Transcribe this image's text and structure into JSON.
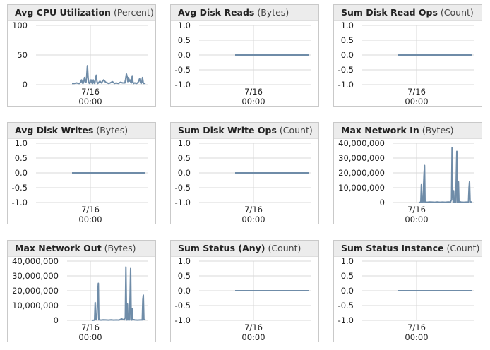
{
  "series_color": "#6f8ca8",
  "grid_color": "#d9d9d9",
  "xtick": {
    "date": "7/16",
    "time": "00:00"
  },
  "panels": [
    {
      "title": "Avg CPU Utilization",
      "unit": "(Percent)"
    },
    {
      "title": "Avg Disk Reads",
      "unit": "(Bytes)"
    },
    {
      "title": "Sum Disk Read Ops",
      "unit": "(Count)"
    },
    {
      "title": "Avg Disk Writes",
      "unit": "(Bytes)"
    },
    {
      "title": "Sum Disk Write Ops",
      "unit": "(Count)"
    },
    {
      "title": "Max Network In",
      "unit": "(Bytes)"
    },
    {
      "title": "Max Network Out",
      "unit": "(Bytes)"
    },
    {
      "title": "Sum Status (Any)",
      "unit": "(Count)"
    },
    {
      "title": "Sum Status Instance",
      "unit": "(Count)"
    }
  ],
  "chart_data": [
    {
      "type": "line",
      "title": "Avg CPU Utilization",
      "ylabel": "Percent",
      "yticks": [
        "100",
        "50",
        "0"
      ],
      "ytick_values": [
        100,
        50,
        0
      ],
      "ylim": [
        0,
        100
      ],
      "xlim": [
        0,
        1
      ],
      "x": [
        0,
        0.03,
        0.06,
        0.09,
        0.1,
        0.11,
        0.12,
        0.13,
        0.14,
        0.15,
        0.16,
        0.17,
        0.18,
        0.19,
        0.2,
        0.21,
        0.22,
        0.23,
        0.24,
        0.25,
        0.26,
        0.27,
        0.28,
        0.29,
        0.3,
        0.31,
        0.32,
        0.33,
        0.34,
        0.35,
        0.36,
        0.38,
        0.4,
        0.43,
        0.46,
        0.5,
        0.52,
        0.55,
        0.58,
        0.6,
        0.63,
        0.66,
        0.69,
        0.72,
        0.73,
        0.74,
        0.75,
        0.76,
        0.77,
        0.78,
        0.79,
        0.8,
        0.81,
        0.82,
        0.83,
        0.84,
        0.85,
        0.86,
        0.87,
        0.88,
        0.9,
        0.92,
        0.93,
        0.94,
        0.95,
        0.96,
        0.97,
        0.98,
        1
      ],
      "series": [
        {
          "values": [
            2,
            2,
            3,
            2,
            2,
            3,
            5,
            8,
            3,
            2,
            5,
            12,
            6,
            4,
            14,
            32,
            10,
            3,
            2,
            5,
            8,
            3,
            2,
            8,
            3,
            2,
            10,
            16,
            5,
            2,
            3,
            6,
            3,
            8,
            4,
            2,
            3,
            5,
            2,
            3,
            2,
            4,
            3,
            3,
            9,
            18,
            14,
            5,
            12,
            6,
            8,
            4,
            3,
            15,
            4,
            2,
            3,
            3,
            2,
            2,
            4,
            10,
            5,
            2,
            4,
            12,
            3,
            2,
            3
          ]
        }
      ]
    },
    {
      "type": "line",
      "title": "Avg Disk Reads",
      "ylabel": "Bytes",
      "yticks": [
        "1.0",
        "0.5",
        "0.0",
        "-0.5",
        "-1.0"
      ],
      "ytick_values": [
        1,
        0.5,
        0,
        -0.5,
        -1
      ],
      "ylim": [
        -1,
        1
      ],
      "xlim": [
        0,
        1
      ],
      "x": [
        0,
        1
      ],
      "series": [
        {
          "values": [
            0,
            0
          ]
        }
      ]
    },
    {
      "type": "line",
      "title": "Sum Disk Read Ops",
      "ylabel": "Count",
      "yticks": [
        "1.0",
        "0.5",
        "0.0",
        "-0.5",
        "-1.0"
      ],
      "ytick_values": [
        1,
        0.5,
        0,
        -0.5,
        -1
      ],
      "ylim": [
        -1,
        1
      ],
      "xlim": [
        0,
        1
      ],
      "x": [
        0,
        1
      ],
      "series": [
        {
          "values": [
            0,
            0
          ]
        }
      ]
    },
    {
      "type": "line",
      "title": "Avg Disk Writes",
      "ylabel": "Bytes",
      "yticks": [
        "1.0",
        "0.5",
        "0.0",
        "-0.5",
        "-1.0"
      ],
      "ytick_values": [
        1,
        0.5,
        0,
        -0.5,
        -1
      ],
      "ylim": [
        -1,
        1
      ],
      "xlim": [
        0,
        1
      ],
      "x": [
        0,
        1
      ],
      "series": [
        {
          "values": [
            0,
            0
          ]
        }
      ]
    },
    {
      "type": "line",
      "title": "Sum Disk Write Ops",
      "ylabel": "Count",
      "yticks": [
        "1.0",
        "0.5",
        "0.0",
        "-0.5",
        "-1.0"
      ],
      "ytick_values": [
        1,
        0.5,
        0,
        -0.5,
        -1
      ],
      "ylim": [
        -1,
        1
      ],
      "xlim": [
        0,
        1
      ],
      "x": [
        0,
        1
      ],
      "series": [
        {
          "values": [
            0,
            0
          ]
        }
      ]
    },
    {
      "type": "line",
      "title": "Max Network In",
      "ylabel": "Bytes",
      "yticks": [
        "40,000,000",
        "30,000,000",
        "20,000,000",
        "10,000,000",
        "0"
      ],
      "ytick_values": [
        40000000,
        30000000,
        20000000,
        10000000,
        0
      ],
      "ylim": [
        0,
        40000000
      ],
      "xlim": [
        0,
        1
      ],
      "x": [
        0,
        0.04,
        0.05,
        0.06,
        0.08,
        0.1,
        0.11,
        0.12,
        0.13,
        0.14,
        0.16,
        0.2,
        0.25,
        0.3,
        0.35,
        0.4,
        0.45,
        0.5,
        0.55,
        0.6,
        0.62,
        0.63,
        0.64,
        0.65,
        0.66,
        0.67,
        0.7,
        0.72,
        0.73,
        0.74,
        0.75,
        0.76,
        0.78,
        0.8,
        0.85,
        0.9,
        0.94,
        0.95,
        0.96,
        0.97,
        1
      ],
      "series": [
        {
          "values": [
            0,
            200000,
            12000000,
            500000,
            400000,
            18000000,
            25000000,
            300000,
            600000,
            300000,
            200000,
            400000,
            300000,
            200000,
            400000,
            200000,
            300000,
            200000,
            400000,
            300000,
            2000000,
            37000000,
            10000000,
            200000,
            8000000,
            400000,
            300000,
            34500000,
            200000,
            200000,
            14000000,
            400000,
            500000,
            300000,
            200000,
            300000,
            300000,
            10000000,
            14000000,
            600000,
            300000
          ]
        }
      ]
    },
    {
      "type": "line",
      "title": "Max Network Out",
      "ylabel": "Bytes",
      "yticks": [
        "40,000,000",
        "30,000,000",
        "20,000,000",
        "10,000,000",
        "0"
      ],
      "ytick_values": [
        40000000,
        30000000,
        20000000,
        10000000,
        0
      ],
      "ylim": [
        0,
        40000000
      ],
      "xlim": [
        0,
        1
      ],
      "x": [
        0,
        0.04,
        0.05,
        0.06,
        0.08,
        0.1,
        0.11,
        0.12,
        0.13,
        0.14,
        0.16,
        0.2,
        0.25,
        0.3,
        0.35,
        0.4,
        0.45,
        0.5,
        0.55,
        0.6,
        0.62,
        0.63,
        0.64,
        0.65,
        0.66,
        0.67,
        0.7,
        0.72,
        0.73,
        0.74,
        0.75,
        0.76,
        0.78,
        0.8,
        0.85,
        0.9,
        0.94,
        0.95,
        0.96,
        0.97,
        1
      ],
      "series": [
        {
          "values": [
            0,
            200000,
            12000000,
            500000,
            400000,
            19000000,
            25000000,
            300000,
            600000,
            300000,
            200000,
            400000,
            300000,
            200000,
            400000,
            200000,
            300000,
            200000,
            1000000,
            300000,
            2000000,
            36000000,
            10000000,
            200000,
            11000000,
            400000,
            300000,
            35000000,
            200000,
            200000,
            8000000,
            400000,
            500000,
            300000,
            200000,
            300000,
            300000,
            14000000,
            17000000,
            600000,
            300000
          ]
        }
      ]
    },
    {
      "type": "line",
      "title": "Sum Status (Any)",
      "ylabel": "Count",
      "yticks": [
        "1.0",
        "0.5",
        "0.0",
        "-0.5",
        "-1.0"
      ],
      "ytick_values": [
        1,
        0.5,
        0,
        -0.5,
        -1
      ],
      "ylim": [
        -1,
        1
      ],
      "xlim": [
        0,
        1
      ],
      "x": [
        0,
        1
      ],
      "series": [
        {
          "values": [
            0,
            0
          ]
        }
      ]
    },
    {
      "type": "line",
      "title": "Sum Status Instance",
      "ylabel": "Count",
      "yticks": [
        "1.0",
        "0.5",
        "0.0",
        "-0.5",
        "-1.0"
      ],
      "ytick_values": [
        1,
        0.5,
        0,
        -0.5,
        -1
      ],
      "ylim": [
        -1,
        1
      ],
      "xlim": [
        0,
        1
      ],
      "x": [
        0,
        1
      ],
      "series": [
        {
          "values": [
            0,
            0
          ]
        }
      ]
    }
  ]
}
